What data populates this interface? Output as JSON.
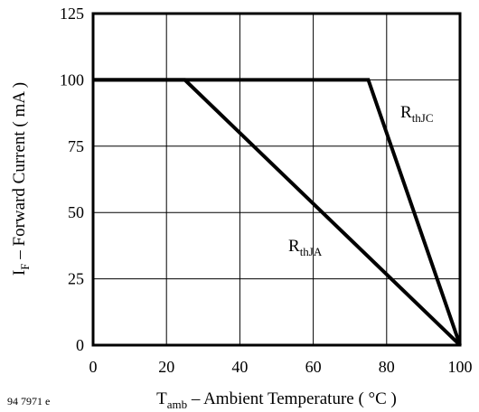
{
  "chart_data": {
    "type": "line",
    "xlabel": {
      "main": "T",
      "sub": "amb",
      "rest": " – Ambient Temperature ( °C )"
    },
    "ylabel": {
      "main": "I",
      "sub": "F",
      "rest": " – Forward Current ( mA )"
    },
    "xlim": [
      0,
      100
    ],
    "ylim": [
      0,
      125
    ],
    "x_ticks": [
      0,
      20,
      40,
      60,
      80,
      100
    ],
    "y_ticks": [
      0,
      25,
      50,
      75,
      100,
      125
    ],
    "grid": true,
    "series": [
      {
        "name": "RthJA",
        "label_main": "R",
        "label_sub": "thJA",
        "points": [
          [
            0,
            100
          ],
          [
            25,
            100
          ],
          [
            100,
            0
          ]
        ]
      },
      {
        "name": "RthJC",
        "label_main": "R",
        "label_sub": "thJC",
        "points": [
          [
            0,
            100
          ],
          [
            75,
            100
          ],
          [
            100,
            0
          ]
        ]
      }
    ],
    "footnote": "94 7971 e"
  }
}
